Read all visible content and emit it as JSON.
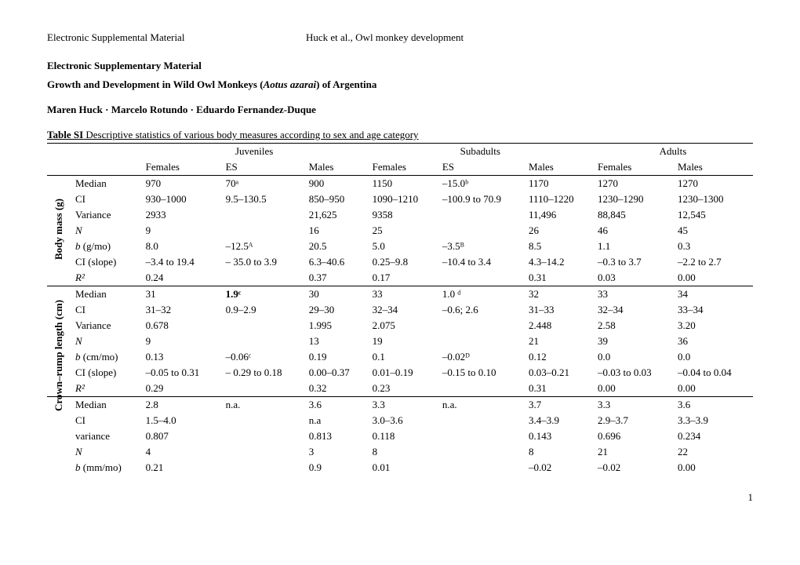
{
  "header": {
    "left": "Electronic Supplemental Material",
    "right": "Huck et al., Owl monkey development"
  },
  "titles": {
    "supplementary": "Electronic Supplementary Material",
    "paper_pre": "Growth and Development in Wild Owl Monkeys (",
    "paper_species": "Aotus azarai",
    "paper_post": ") of Argentina",
    "authors": "Maren Huck · Marcelo Rotundo · Eduardo Fernandez-Duque"
  },
  "table": {
    "caption_label": "Table SI",
    "caption_rest": " Descriptive statistics of various body measures according to sex and age category",
    "group_headers": [
      "Juveniles",
      "Subadults",
      "Adults"
    ],
    "col_headers": [
      "Females",
      "ES",
      "Males",
      "Females",
      "ES",
      "Males",
      "Females",
      "Males"
    ],
    "blocks": [
      {
        "label": "Body mass (g)",
        "rows": [
          {
            "stat": "Median",
            "cells": [
              "970",
              "70ᵃ",
              "900",
              "1150",
              "–15.0ᵇ",
              "1170",
              "1270",
              "1270"
            ]
          },
          {
            "stat": "CI",
            "cells": [
              "930–1000",
              "9.5–130.5",
              "850–950",
              "1090–1210",
              "–100.9 to 70.9",
              "1110–1220",
              "1230–1290",
              "1230–1300"
            ]
          },
          {
            "stat": "Variance",
            "cells": [
              "2933",
              "",
              "21,625",
              "9358",
              "",
              "11,496",
              "88,845",
              "12,545"
            ]
          },
          {
            "stat": "N",
            "cells": [
              "9",
              "",
              "16",
              "25",
              "",
              "26",
              "46",
              "45"
            ],
            "italic": true
          },
          {
            "stat": "b (g/mo)",
            "cells": [
              "8.0",
              "–12.5ᴬ",
              "20.5",
              "5.0",
              "–3.5ᴮ",
              "8.5",
              "1.1",
              "0.3"
            ],
            "italic_b": true
          },
          {
            "stat": "CI (slope)",
            "cells": [
              "–3.4 to 19.4",
              "– 35.0 to 3.9",
              "6.3–40.6",
              "0.25–9.8",
              "–10.4 to 3.4",
              "4.3–14.2",
              "–0.3 to 3.7",
              "–2.2 to 2.7"
            ]
          },
          {
            "stat": "R²",
            "cells": [
              "0.24",
              "",
              "0.37",
              "0.17",
              "",
              "0.31",
              "0.03",
              "0.00"
            ],
            "italic": true
          }
        ]
      },
      {
        "label": "Crown–rump length (cm)",
        "rows": [
          {
            "stat": "Median",
            "cells": [
              "31",
              "1.9ᶜ",
              "30",
              "33",
              "1.0 ᵈ",
              "32",
              "33",
              "34"
            ],
            "bold_es": true
          },
          {
            "stat": "CI",
            "cells": [
              "31–32",
              "0.9–2.9",
              "29–30",
              "32–34",
              "–0.6; 2.6",
              "31–33",
              "32–34",
              "33–34"
            ]
          },
          {
            "stat": "Variance",
            "cells": [
              "0.678",
              "",
              "1.995",
              "2.075",
              "",
              "2.448",
              "2.58",
              "3.20"
            ]
          },
          {
            "stat": "N",
            "cells": [
              "9",
              "",
              "13",
              "19",
              "",
              "21",
              "39",
              "36"
            ],
            "italic": true
          },
          {
            "stat": "b (cm/mo)",
            "cells": [
              "0.13",
              "–0.06ᶜ",
              "0.19",
              "0.1",
              "–0.02ᴰ",
              "0.12",
              "0.0",
              "0.0"
            ],
            "italic_b": true
          },
          {
            "stat": "CI (slope)",
            "cells": [
              "–0.05 to 0.31",
              "– 0.29 to 0.18",
              "0.00–0.37",
              "0.01–0.19",
              "–0.15 to 0.10",
              "0.03–0.21",
              "–0.03 to 0.03",
              "–0.04 to 0.04"
            ]
          },
          {
            "stat": "R²",
            "cells": [
              "0.29",
              "",
              "0.32",
              "0.23",
              "",
              "0.31",
              "0.00",
              "0.00"
            ],
            "italic": true
          }
        ]
      },
      {
        "label": "",
        "rows": [
          {
            "stat": "Median",
            "cells": [
              "2.8",
              "n.a.",
              "3.6",
              "3.3",
              "n.a.",
              "3.7",
              "3.3",
              "3.6"
            ]
          },
          {
            "stat": "CI",
            "cells": [
              "1.5–4.0",
              "",
              "n.a",
              "3.0–3.6",
              "",
              "3.4–3.9",
              "2.9–3.7",
              "3.3–3.9"
            ]
          },
          {
            "stat": "variance",
            "cells": [
              "0.807",
              "",
              "0.813",
              "0.118",
              "",
              "0.143",
              "0.696",
              "0.234"
            ]
          },
          {
            "stat": "N",
            "cells": [
              "4",
              "",
              "3",
              "8",
              "",
              "8",
              "21",
              "22"
            ],
            "italic": true
          },
          {
            "stat": "b (mm/mo)",
            "cells": [
              "0.21",
              "",
              "0.9",
              "0.01",
              "",
              "–0.02",
              "–0.02",
              "0.00"
            ],
            "italic_b": true
          }
        ]
      }
    ]
  },
  "page_number": "1"
}
